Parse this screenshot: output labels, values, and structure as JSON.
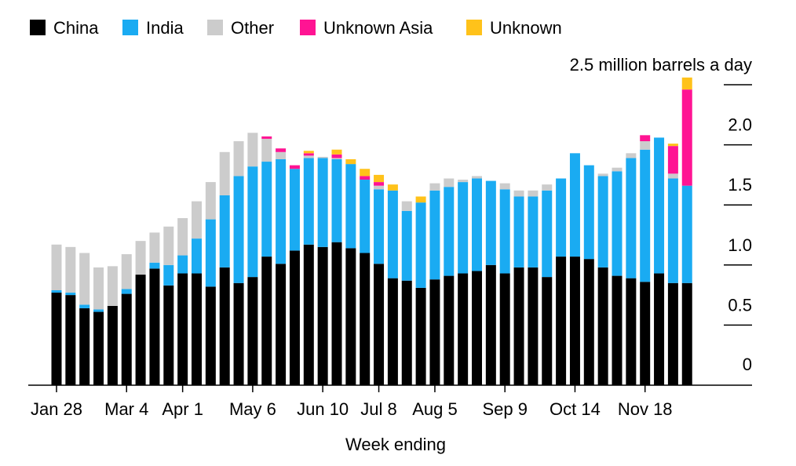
{
  "chart_data": {
    "type": "bar",
    "stacked": true,
    "title": "",
    "xlabel": "Week ending",
    "ylabel": "",
    "unit_label": "2.5 million barrels a day",
    "ylim": [
      0,
      2.5
    ],
    "yticks": [
      {
        "value": 0,
        "label": "0"
      },
      {
        "value": 0.5,
        "label": "0.5"
      },
      {
        "value": 1.0,
        "label": "1.0"
      },
      {
        "value": 1.5,
        "label": "1.5"
      },
      {
        "value": 2.0,
        "label": "2.0"
      }
    ],
    "xticks": [
      {
        "index": 0,
        "label": "Jan 28"
      },
      {
        "index": 5,
        "label": "Mar 4"
      },
      {
        "index": 9,
        "label": "Apr 1"
      },
      {
        "index": 14,
        "label": "May 6"
      },
      {
        "index": 19,
        "label": "Jun 10"
      },
      {
        "index": 23,
        "label": "Jul 8"
      },
      {
        "index": 27,
        "label": "Aug 5"
      },
      {
        "index": 32,
        "label": "Sep 9"
      },
      {
        "index": 37,
        "label": "Oct 14"
      },
      {
        "index": 42,
        "label": "Nov 18"
      }
    ],
    "grid": false,
    "legend_position": "top-left",
    "series": [
      {
        "name": "China",
        "color": "#000000",
        "values": [
          0.77,
          0.75,
          0.64,
          0.61,
          0.66,
          0.76,
          0.92,
          0.97,
          0.83,
          0.93,
          0.93,
          0.82,
          0.98,
          0.85,
          0.9,
          1.07,
          1.01,
          1.12,
          1.17,
          1.15,
          1.19,
          1.14,
          1.1,
          1.01,
          0.89,
          0.87,
          0.81,
          0.88,
          0.91,
          0.93,
          0.95,
          1.0,
          0.93,
          0.98,
          0.98,
          0.9,
          1.07,
          1.07,
          1.05,
          0.98,
          0.91,
          0.89,
          0.86,
          0.93,
          0.85,
          0.85
        ]
      },
      {
        "name": "India",
        "color": "#1aabf2",
        "values": [
          0.02,
          0.02,
          0.03,
          0.02,
          0.0,
          0.04,
          0.0,
          0.05,
          0.17,
          0.15,
          0.29,
          0.56,
          0.6,
          0.89,
          0.92,
          0.79,
          0.87,
          0.68,
          0.72,
          0.74,
          0.69,
          0.7,
          0.61,
          0.62,
          0.73,
          0.58,
          0.71,
          0.74,
          0.74,
          0.76,
          0.77,
          0.7,
          0.7,
          0.59,
          0.59,
          0.72,
          0.65,
          0.86,
          0.78,
          0.76,
          0.87,
          1.0,
          1.1,
          1.13,
          0.87,
          0.81
        ]
      },
      {
        "name": "Other",
        "color": "#cccccc",
        "values": [
          0.38,
          0.38,
          0.43,
          0.35,
          0.33,
          0.29,
          0.28,
          0.25,
          0.32,
          0.31,
          0.31,
          0.31,
          0.36,
          0.29,
          0.28,
          0.19,
          0.06,
          0.0,
          0.02,
          0.01,
          0.01,
          0.0,
          0.0,
          0.03,
          0.0,
          0.08,
          0.0,
          0.06,
          0.07,
          0.02,
          0.02,
          0.0,
          0.05,
          0.05,
          0.05,
          0.05,
          0.0,
          0.0,
          0.0,
          0.02,
          0.03,
          0.04,
          0.07,
          0.0,
          0.04,
          0.0
        ]
      },
      {
        "name": "Unknown Asia",
        "color": "#ff1493",
        "values": [
          0,
          0,
          0,
          0,
          0,
          0,
          0,
          0,
          0,
          0,
          0,
          0,
          0,
          0,
          0,
          0.02,
          0.03,
          0.03,
          0.02,
          0.0,
          0.03,
          0.0,
          0.03,
          0.03,
          0.0,
          0.0,
          0.0,
          0.0,
          0.0,
          0.0,
          0.0,
          0.0,
          0.0,
          0.0,
          0.0,
          0.0,
          0.0,
          0.0,
          0.0,
          0.0,
          0.0,
          0.0,
          0.05,
          0.0,
          0.23,
          0.8
        ]
      },
      {
        "name": "Unknown",
        "color": "#ffc21a",
        "values": [
          0,
          0,
          0,
          0,
          0,
          0,
          0,
          0,
          0,
          0,
          0,
          0,
          0,
          0,
          0,
          0,
          0,
          0,
          0.02,
          0.0,
          0.04,
          0.04,
          0.06,
          0.06,
          0.05,
          0.0,
          0.05,
          0.0,
          0.0,
          0.0,
          0.0,
          0.0,
          0.0,
          0.0,
          0.0,
          0.0,
          0.0,
          0.0,
          0.0,
          0.0,
          0.0,
          0.0,
          0.0,
          0.0,
          0.02,
          0.1
        ]
      }
    ]
  }
}
